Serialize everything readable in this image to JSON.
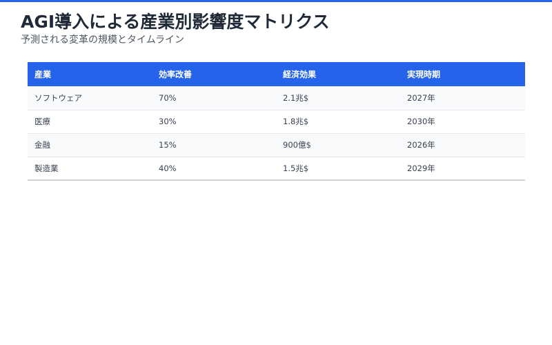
{
  "header": {
    "title": "AGI導入による産業別影響度マトリクス",
    "subtitle": "予測される変革の規模とタイムライン",
    "accent_color": "#2563eb"
  },
  "table": {
    "columns": [
      "産業",
      "効率改善",
      "経済効果",
      "実現時期"
    ],
    "rows": [
      [
        "ソフトウェア",
        "70%",
        "2.1兆$",
        "2027年"
      ],
      [
        "医療",
        "30%",
        "1.8兆$",
        "2030年"
      ],
      [
        "金融",
        "15%",
        "900億$",
        "2026年"
      ],
      [
        "製造業",
        "40%",
        "1.5兆$",
        "2029年"
      ]
    ]
  }
}
